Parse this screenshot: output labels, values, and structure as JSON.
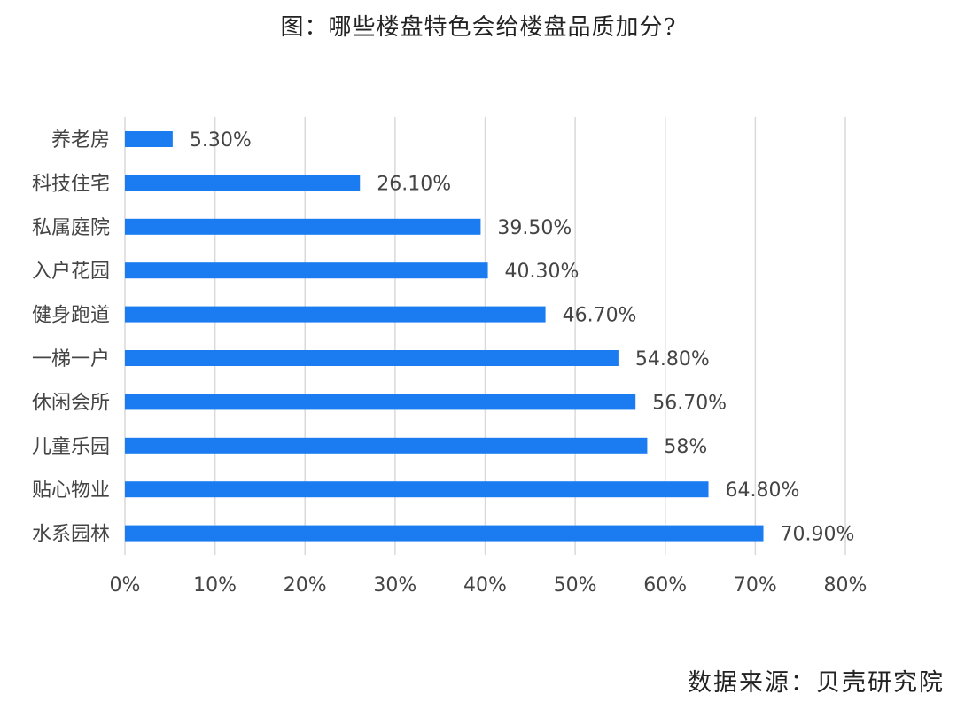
{
  "chart_data": {
    "type": "bar",
    "orientation": "horizontal",
    "title": "图：哪些楼盘特色会给楼盘品质加分?",
    "categories": [
      "养老房",
      "科技住宅",
      "私属庭院",
      "入户花园",
      "健身跑道",
      "一梯一户",
      "休闲会所",
      "儿童乐园",
      "贴心物业",
      "水系园林"
    ],
    "values": [
      5.3,
      26.1,
      39.5,
      40.3,
      46.7,
      54.8,
      56.7,
      58,
      64.8,
      70.9
    ],
    "data_labels": [
      "5.30%",
      "26.10%",
      "39.50%",
      "40.30%",
      "46.70%",
      "54.80%",
      "56.70%",
      "58%",
      "64.80%",
      "70.90%"
    ],
    "x_ticks": [
      0,
      10,
      20,
      30,
      40,
      50,
      60,
      70,
      80
    ],
    "x_tick_labels": [
      "0%",
      "10%",
      "20%",
      "30%",
      "40%",
      "50%",
      "60%",
      "70%",
      "80%"
    ],
    "xlim": [
      0,
      80
    ],
    "xlabel": "",
    "ylabel": "",
    "grid": "vertical",
    "legend": "none",
    "bar_color": "#1a7cf0",
    "grid_color": "#d9d9d9",
    "label_color": "#444444"
  },
  "source": "数据来源：贝壳研究院"
}
